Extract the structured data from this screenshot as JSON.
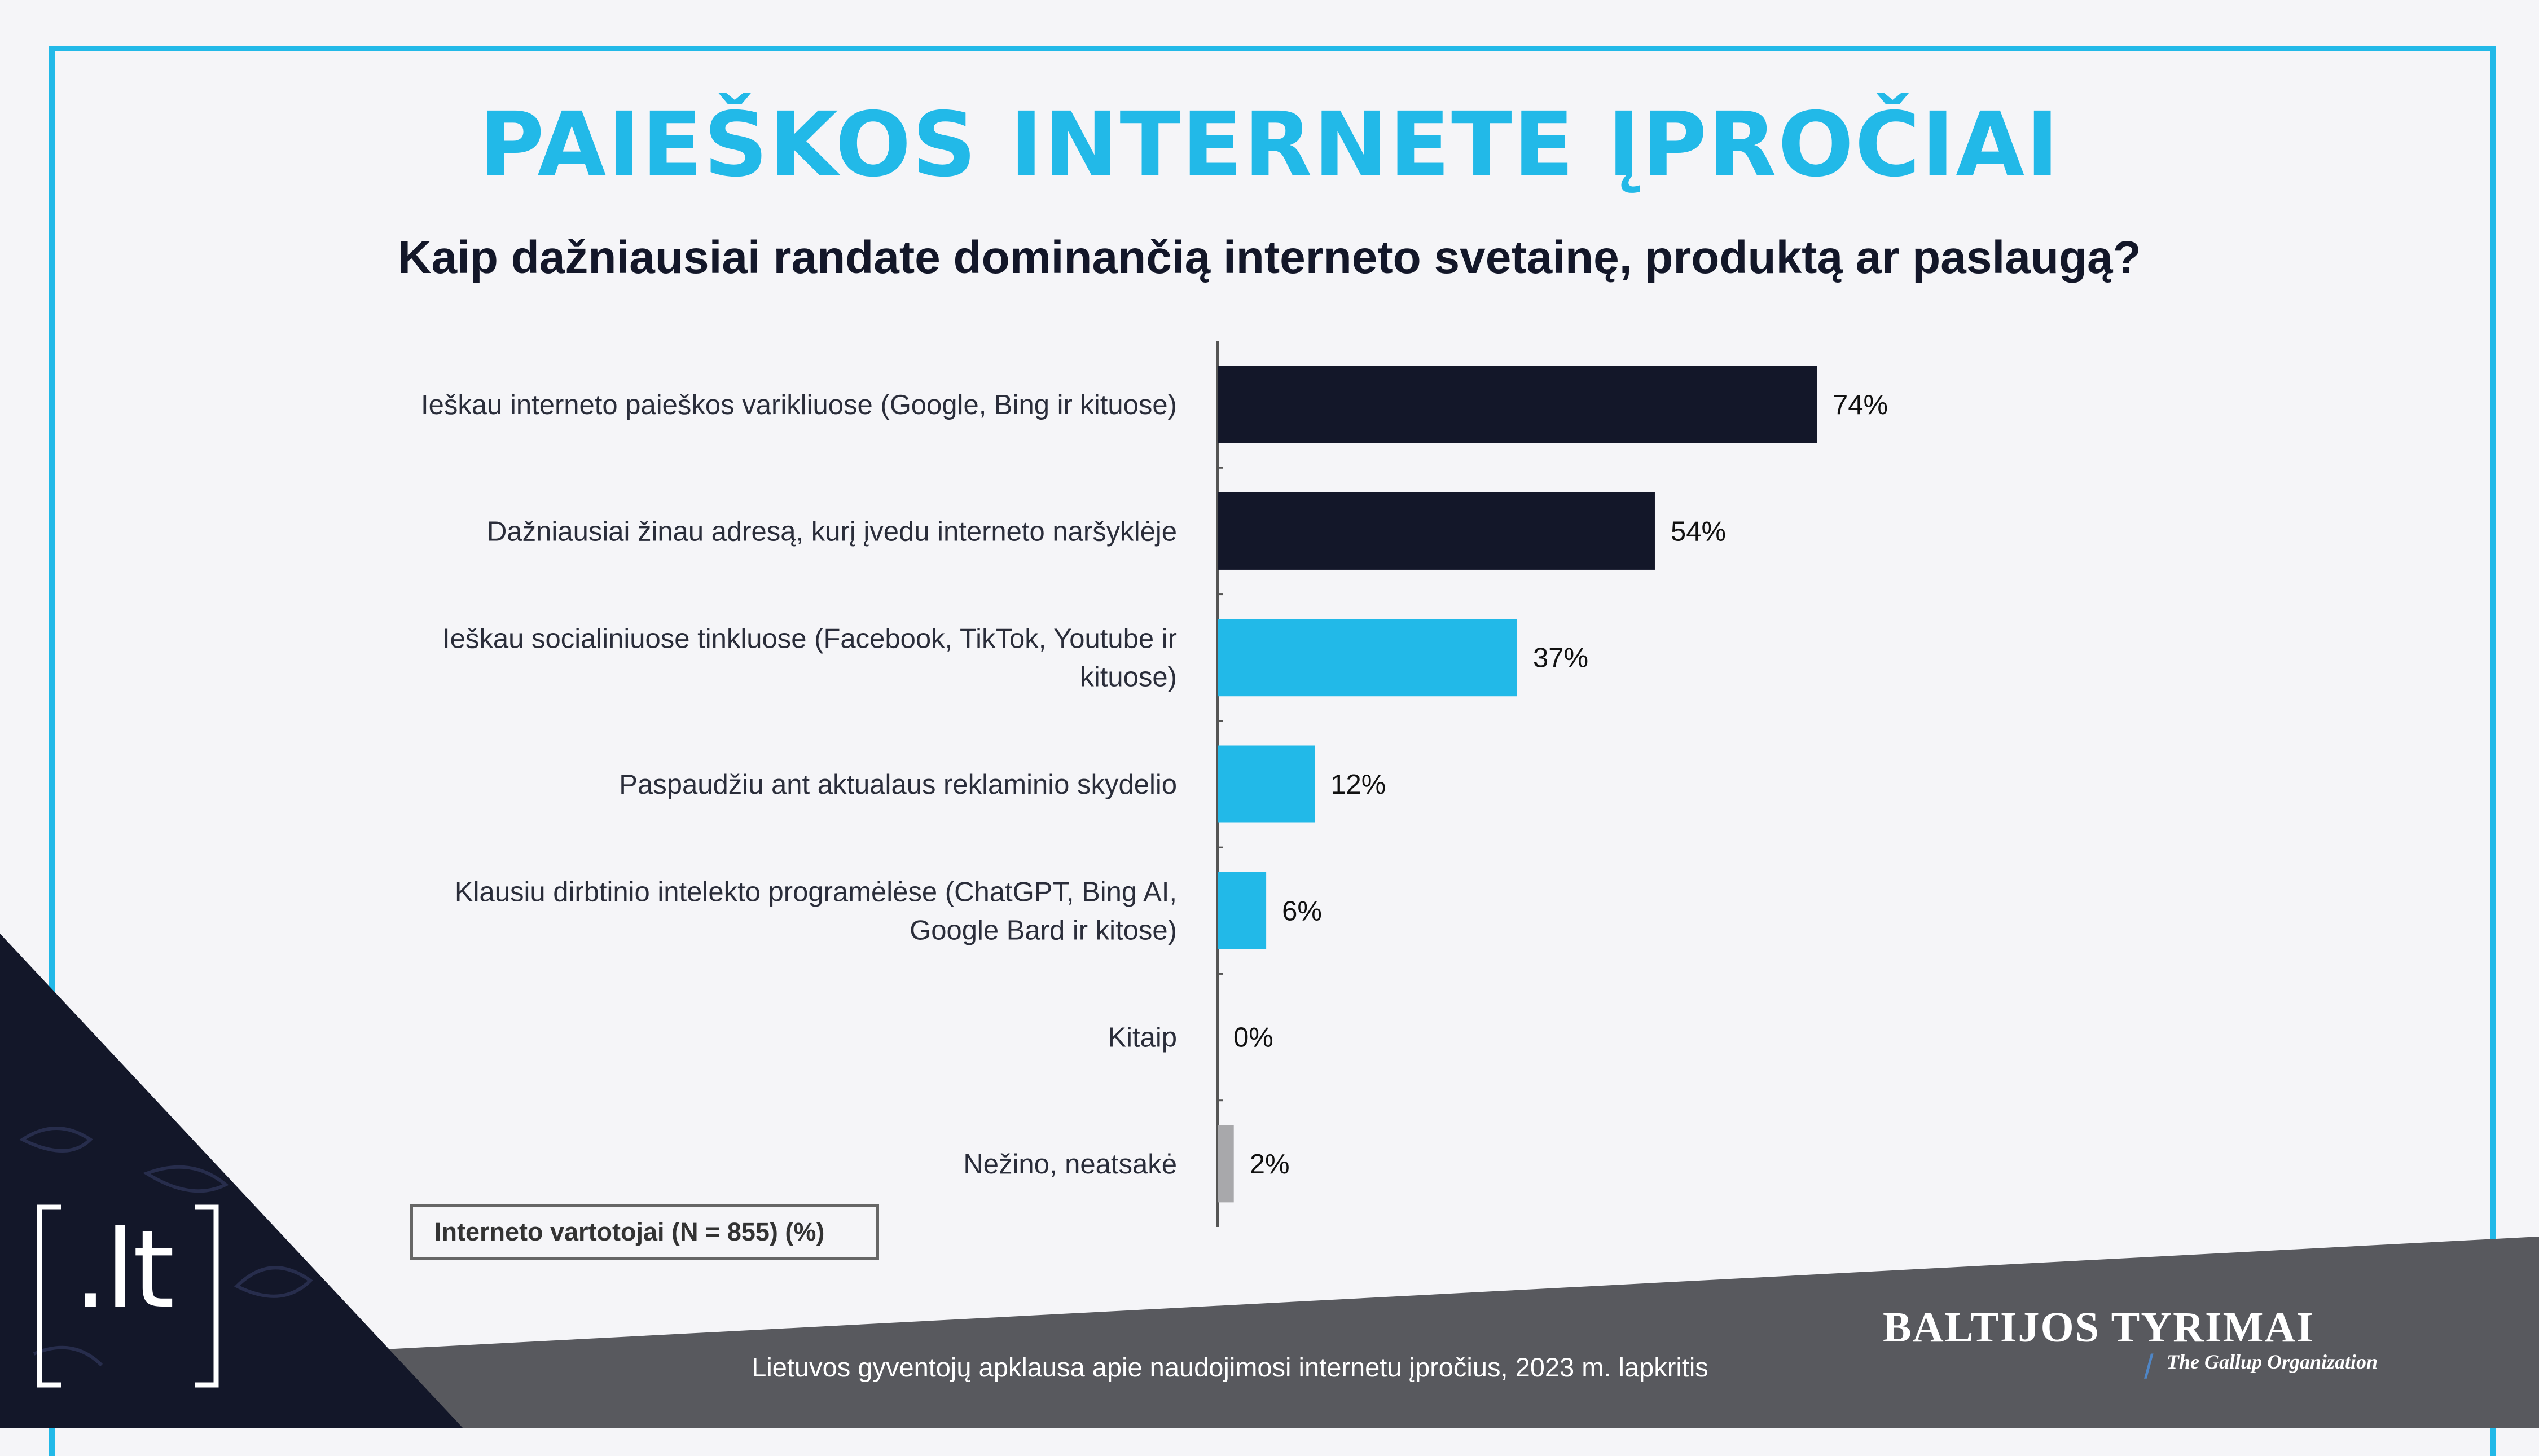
{
  "title": "PAIEŠKOS INTERNETE ĮPROČIAI",
  "subtitle": "Kaip dažniausiai randate dominančią interneto svetainę, produktą ar paslaugą?",
  "note": "Interneto vartotojai (N = 855) (%)",
  "footer_text": "Lietuvos gyventojų apklausa apie naudojimosi internetu įpročius, 2023 m. lapkritis",
  "brand": {
    "name": "BALTIJOS TYRIMAI",
    "tagline": "The Gallup Organization",
    "logo": ".lt"
  },
  "colors": {
    "accent": "#22b9e8",
    "dark": "#131729",
    "gray": "#a8a8ab",
    "footer_bg": "#58595e"
  },
  "chart_data": {
    "type": "bar",
    "orientation": "horizontal",
    "categories": [
      [
        "Ieškau interneto paieškos varikliuose (Google, Bing ir kituose)"
      ],
      [
        "Dažniausiai žinau adresą, kurį įvedu interneto naršyklėje"
      ],
      [
        "Ieškau socialiniuose tinkluose (Facebook, TikTok, Youtube ir",
        "kituose)"
      ],
      [
        "Paspaudžiu ant aktualaus reklaminio skydelio"
      ],
      [
        "Klausiu dirbtinio intelekto programėlėse (ChatGPT, Bing AI,",
        "Google Bard ir kitose)"
      ],
      [
        "Kitaip"
      ],
      [
        "Nežino, neatsakė"
      ]
    ],
    "values": [
      74,
      54,
      37,
      12,
      6,
      0,
      2
    ],
    "value_labels": [
      "74%",
      "54%",
      "37%",
      "12%",
      "6%",
      "0%",
      "2%"
    ],
    "bar_colors": [
      "#131729",
      "#131729",
      "#22b9e8",
      "#22b9e8",
      "#22b9e8",
      "#22b9e8",
      "#a8a8ab"
    ],
    "xlim": [
      0,
      100
    ],
    "grid": false,
    "legend": "none"
  }
}
